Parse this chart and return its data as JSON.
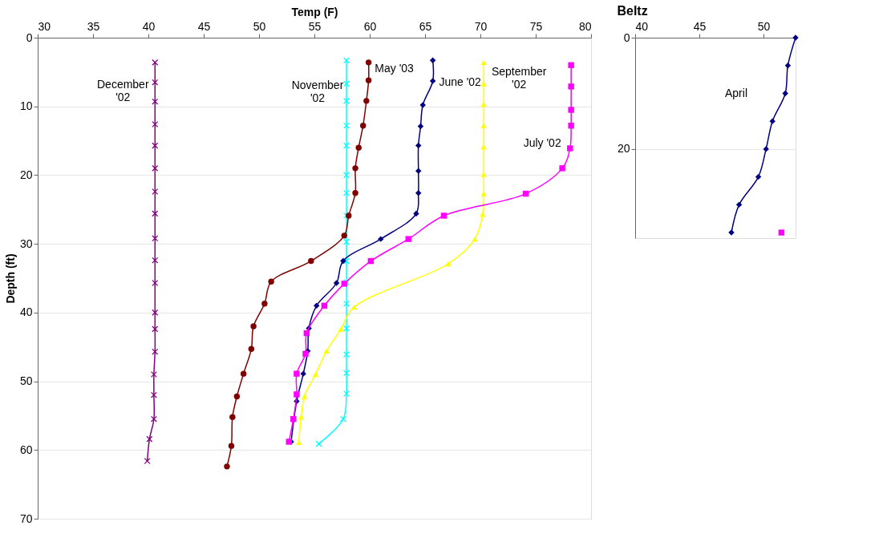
{
  "chart_data": [
    {
      "type": "line",
      "xlabel": "Temp (F)",
      "ylabel": "Depth (ft)",
      "xlim": [
        30,
        80
      ],
      "xticks": [
        30,
        35,
        40,
        45,
        50,
        55,
        60,
        65,
        70,
        75,
        80
      ],
      "ylim": [
        70,
        0
      ],
      "yticks": [
        0,
        10,
        20,
        30,
        40,
        50,
        60,
        70
      ],
      "grid": "y",
      "series": [
        {
          "name": "December\n'02",
          "color": "#800080",
          "marker": "cross",
          "x": [
            40.6,
            40.6,
            40.6,
            40.6,
            40.6,
            40.6,
            40.6,
            40.6,
            40.6,
            40.6,
            40.6,
            40.6,
            40.6,
            40.6,
            40.5,
            40.5,
            40.5,
            40.1,
            39.9
          ],
          "values": [
            3.6,
            6.5,
            9.3,
            12.6,
            15.7,
            19.0,
            22.4,
            25.6,
            29.2,
            32.4,
            35.7,
            40.0,
            42.4,
            45.7,
            49.0,
            52.0,
            55.5,
            58.4,
            61.6
          ]
        },
        {
          "name": "November\n'02",
          "color": "#00ffff",
          "marker": "cross",
          "x": [
            57.9,
            57.9,
            57.9,
            57.9,
            57.9,
            57.9,
            57.9,
            57.9,
            57.9,
            57.9,
            57.9,
            57.9,
            57.9,
            57.9,
            57.9,
            57.9,
            57.6,
            55.4
          ],
          "values": [
            3.3,
            6.7,
            9.2,
            12.8,
            15.7,
            20.0,
            22.6,
            25.9,
            29.7,
            32.5,
            35.6,
            38.7,
            42.3,
            46.1,
            48.8,
            51.8,
            55.5,
            59.1
          ]
        },
        {
          "name": "May '03",
          "color": "#800000",
          "marker": "circle",
          "x": [
            59.9,
            59.9,
            59.7,
            59.4,
            59.0,
            58.7,
            58.7,
            58.1,
            57.7,
            54.7,
            51.1,
            50.5,
            49.5,
            49.3,
            48.6,
            48.0,
            47.6,
            47.5,
            47.1
          ],
          "values": [
            3.6,
            6.2,
            9.2,
            12.8,
            16.0,
            19.0,
            22.6,
            25.9,
            28.8,
            32.5,
            35.5,
            38.7,
            42.0,
            45.3,
            48.9,
            52.2,
            55.2,
            59.4,
            62.4
          ]
        },
        {
          "name": "June '02",
          "color": "#000080",
          "marker": "diamond",
          "x": [
            65.7,
            65.7,
            64.8,
            64.6,
            64.4,
            64.4,
            64.4,
            64.2,
            61.0,
            57.6,
            57.0,
            55.2,
            54.5,
            54.4,
            54.0,
            53.4,
            52.9
          ],
          "values": [
            3.3,
            6.3,
            9.8,
            12.9,
            15.7,
            19.4,
            22.6,
            25.6,
            29.3,
            32.5,
            35.7,
            39.0,
            42.3,
            45.6,
            48.9,
            52.9,
            58.8
          ]
        },
        {
          "name": "September\n'02",
          "color": "#ffff00",
          "marker": "triangle",
          "x": [
            70.3,
            70.3,
            70.3,
            70.3,
            70.3,
            70.3,
            70.3,
            70.2,
            69.5,
            67.1,
            58.6,
            57.4,
            56.1,
            55.1,
            54.1,
            53.8,
            53.6
          ],
          "values": [
            3.6,
            6.7,
            9.7,
            12.8,
            15.9,
            19.9,
            22.7,
            25.7,
            29.3,
            32.9,
            39.2,
            42.4,
            45.6,
            49.0,
            52.2,
            55.2,
            58.9
          ]
        },
        {
          "name": "July '02",
          "color": "#ff00ff",
          "marker": "square",
          "x": [
            78.2,
            78.2,
            78.2,
            78.2,
            78.1,
            77.4,
            74.1,
            66.7,
            63.5,
            60.1,
            57.7,
            55.9,
            54.3,
            54.2,
            53.4,
            53.4,
            53.1,
            52.7
          ],
          "values": [
            4.0,
            7.1,
            10.5,
            12.8,
            16.1,
            19.0,
            22.7,
            25.9,
            29.3,
            32.5,
            35.8,
            39.0,
            43.0,
            46.0,
            48.9,
            51.9,
            55.5,
            58.8
          ]
        }
      ]
    },
    {
      "type": "line",
      "title": "Beltz",
      "xlim": [
        40,
        52.5
      ],
      "xticks": [
        40,
        45,
        50
      ],
      "ylim": [
        36,
        0
      ],
      "yticks": [
        0,
        20
      ],
      "grid": "y",
      "series": [
        {
          "name": "April",
          "color": "#000080",
          "marker": "diamond",
          "x": [
            52.5,
            51.9,
            51.7,
            50.7,
            50.2,
            49.6,
            48.1,
            47.5
          ],
          "values": [
            0,
            5,
            10,
            15,
            20,
            25,
            30,
            35
          ]
        },
        {
          "color": "#ff00ff",
          "marker": "square",
          "x": [
            51.4
          ],
          "values": [
            35.0
          ]
        }
      ]
    }
  ]
}
